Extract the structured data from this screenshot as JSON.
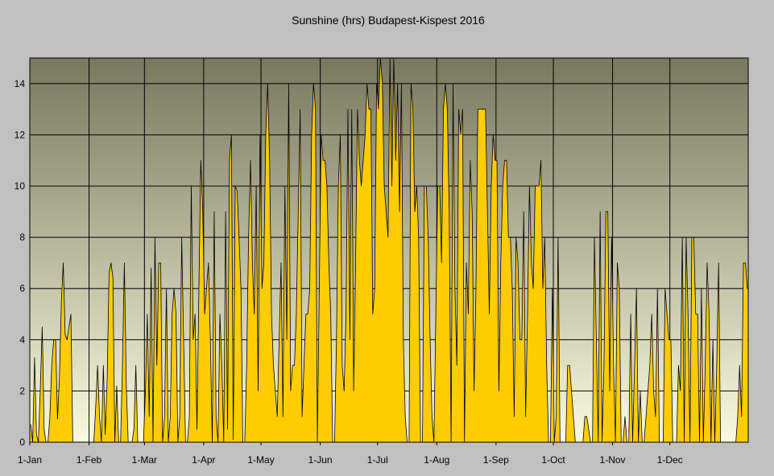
{
  "chart_data": {
    "type": "area",
    "title": "Sunshine (hrs) Budapest-Kispest 2016",
    "xlabel": "",
    "ylabel": "",
    "ylim": [
      0,
      15
    ],
    "y_ticks": [
      "0",
      "2",
      "4",
      "6",
      "8",
      "10",
      "12",
      "14"
    ],
    "x_ticks": [
      "1-Jan",
      "1-Feb",
      "1-Mar",
      "1-Apr",
      "1-May",
      "1-Jun",
      "1-Jul",
      "1-Aug",
      "1-Sep",
      "1-Oct",
      "1-Nov",
      "1-Dec"
    ],
    "grid": true,
    "fill_color": "#ffcc00",
    "line_color": "#000000",
    "background_gradient": [
      "#787860",
      "#fafae0"
    ],
    "series": [
      {
        "values": [
          0.7,
          0,
          3.3,
          0.3,
          0,
          2.1,
          4.5,
          0.5,
          0,
          0,
          1,
          3,
          4,
          4,
          0.9,
          2.5,
          5.4,
          7,
          4.2,
          4,
          4.5,
          5,
          0,
          0,
          0,
          0,
          0,
          0,
          0,
          0,
          0,
          0,
          0,
          0,
          1.4,
          3,
          1,
          0,
          3,
          0.3,
          2.5,
          6.6,
          7,
          6.4,
          0,
          2.2,
          0,
          0,
          3,
          7,
          2.2,
          0,
          0,
          0,
          0.5,
          3,
          0,
          0,
          0,
          0,
          2,
          5,
          1,
          6.8,
          0,
          8,
          3,
          7,
          7,
          0,
          1,
          6,
          0,
          1,
          5,
          6,
          5,
          0,
          1,
          8,
          4,
          0,
          0,
          1,
          10,
          4,
          5,
          0.5,
          6,
          11,
          9,
          5,
          6,
          7,
          4,
          0,
          9,
          1,
          0,
          5,
          3,
          0,
          9,
          0.5,
          11,
          12,
          0.1,
          10,
          9.8,
          8,
          6,
          0,
          0,
          3,
          8,
          11,
          7,
          5,
          10,
          2,
          12,
          6,
          7,
          12,
          14,
          11,
          5,
          3,
          2,
          1,
          4,
          7,
          1,
          10,
          4,
          14,
          2,
          3,
          3,
          5,
          9,
          13,
          1,
          3,
          5,
          5,
          6,
          12,
          14,
          13,
          0,
          6,
          12,
          11,
          11,
          10,
          7,
          5,
          0,
          0,
          4,
          10,
          12,
          3,
          2,
          5,
          13,
          4,
          13,
          2,
          7,
          13,
          11,
          10,
          11,
          12,
          14,
          13,
          13,
          5,
          6,
          14,
          13,
          15,
          14,
          10,
          9,
          8,
          15,
          10,
          15,
          11,
          14,
          9,
          14,
          4,
          1,
          0,
          0,
          14,
          13,
          9,
          10,
          8,
          0,
          0,
          10,
          10,
          8,
          4,
          1,
          0,
          5,
          10,
          10,
          7,
          13,
          14,
          13,
          9,
          0,
          14,
          6,
          3,
          13,
          12,
          13,
          0,
          7,
          5,
          11,
          9,
          2,
          6,
          13,
          13,
          13,
          13,
          13,
          9,
          5,
          10,
          12,
          11,
          11,
          2,
          7,
          10,
          11,
          11,
          8,
          8,
          6,
          1,
          8,
          7,
          4,
          4,
          9,
          1,
          5,
          10,
          7,
          6,
          10,
          10,
          10,
          11,
          6,
          8,
          3,
          0,
          0,
          6,
          0,
          1,
          8,
          0,
          0,
          0,
          0,
          3,
          3,
          2,
          1,
          0,
          0,
          0,
          0,
          0,
          1,
          1,
          0.5,
          0,
          0,
          8,
          4,
          0,
          9,
          0,
          3,
          9,
          9,
          2,
          8,
          3,
          0,
          7,
          6,
          0,
          0,
          1,
          0,
          0,
          5,
          0,
          3,
          6,
          0,
          2,
          0,
          0,
          1,
          2,
          3,
          5,
          2,
          1,
          6,
          0,
          0,
          0,
          6,
          5,
          4,
          4,
          0,
          0,
          0,
          3,
          2,
          8,
          0,
          8,
          5,
          0,
          8,
          8,
          5,
          5,
          0,
          6,
          0,
          3,
          7,
          5,
          0,
          4,
          0,
          3,
          7,
          0,
          0,
          0,
          0,
          0,
          0,
          0,
          0,
          0,
          1,
          3,
          1,
          7,
          7,
          6
        ]
      }
    ]
  }
}
